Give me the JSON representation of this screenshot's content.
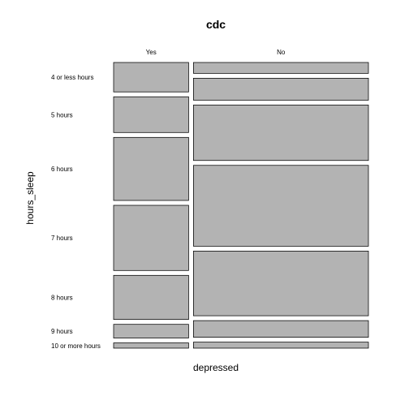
{
  "chart_data": {
    "type": "mosaic",
    "title": "cdc",
    "xlabel": "depressed",
    "ylabel": "hours_sleep",
    "x_categories": [
      "Yes",
      "No"
    ],
    "y_categories": [
      "4 or less hours",
      "5 hours",
      "6 hours",
      "7 hours",
      "8 hours",
      "9 hours",
      "10 or more hours"
    ],
    "x_proportions": [
      0.3,
      0.7
    ],
    "conditional_proportions": {
      "Yes": [
        0.14,
        0.17,
        0.3,
        0.31,
        0.21,
        0.065,
        0.025
      ],
      "No": [
        0.047,
        0.095,
        0.24,
        0.35,
        0.28,
        0.072,
        0.026
      ]
    },
    "colors": {
      "tile_fill": "#b3b3b3",
      "tile_stroke": "#000000"
    }
  }
}
